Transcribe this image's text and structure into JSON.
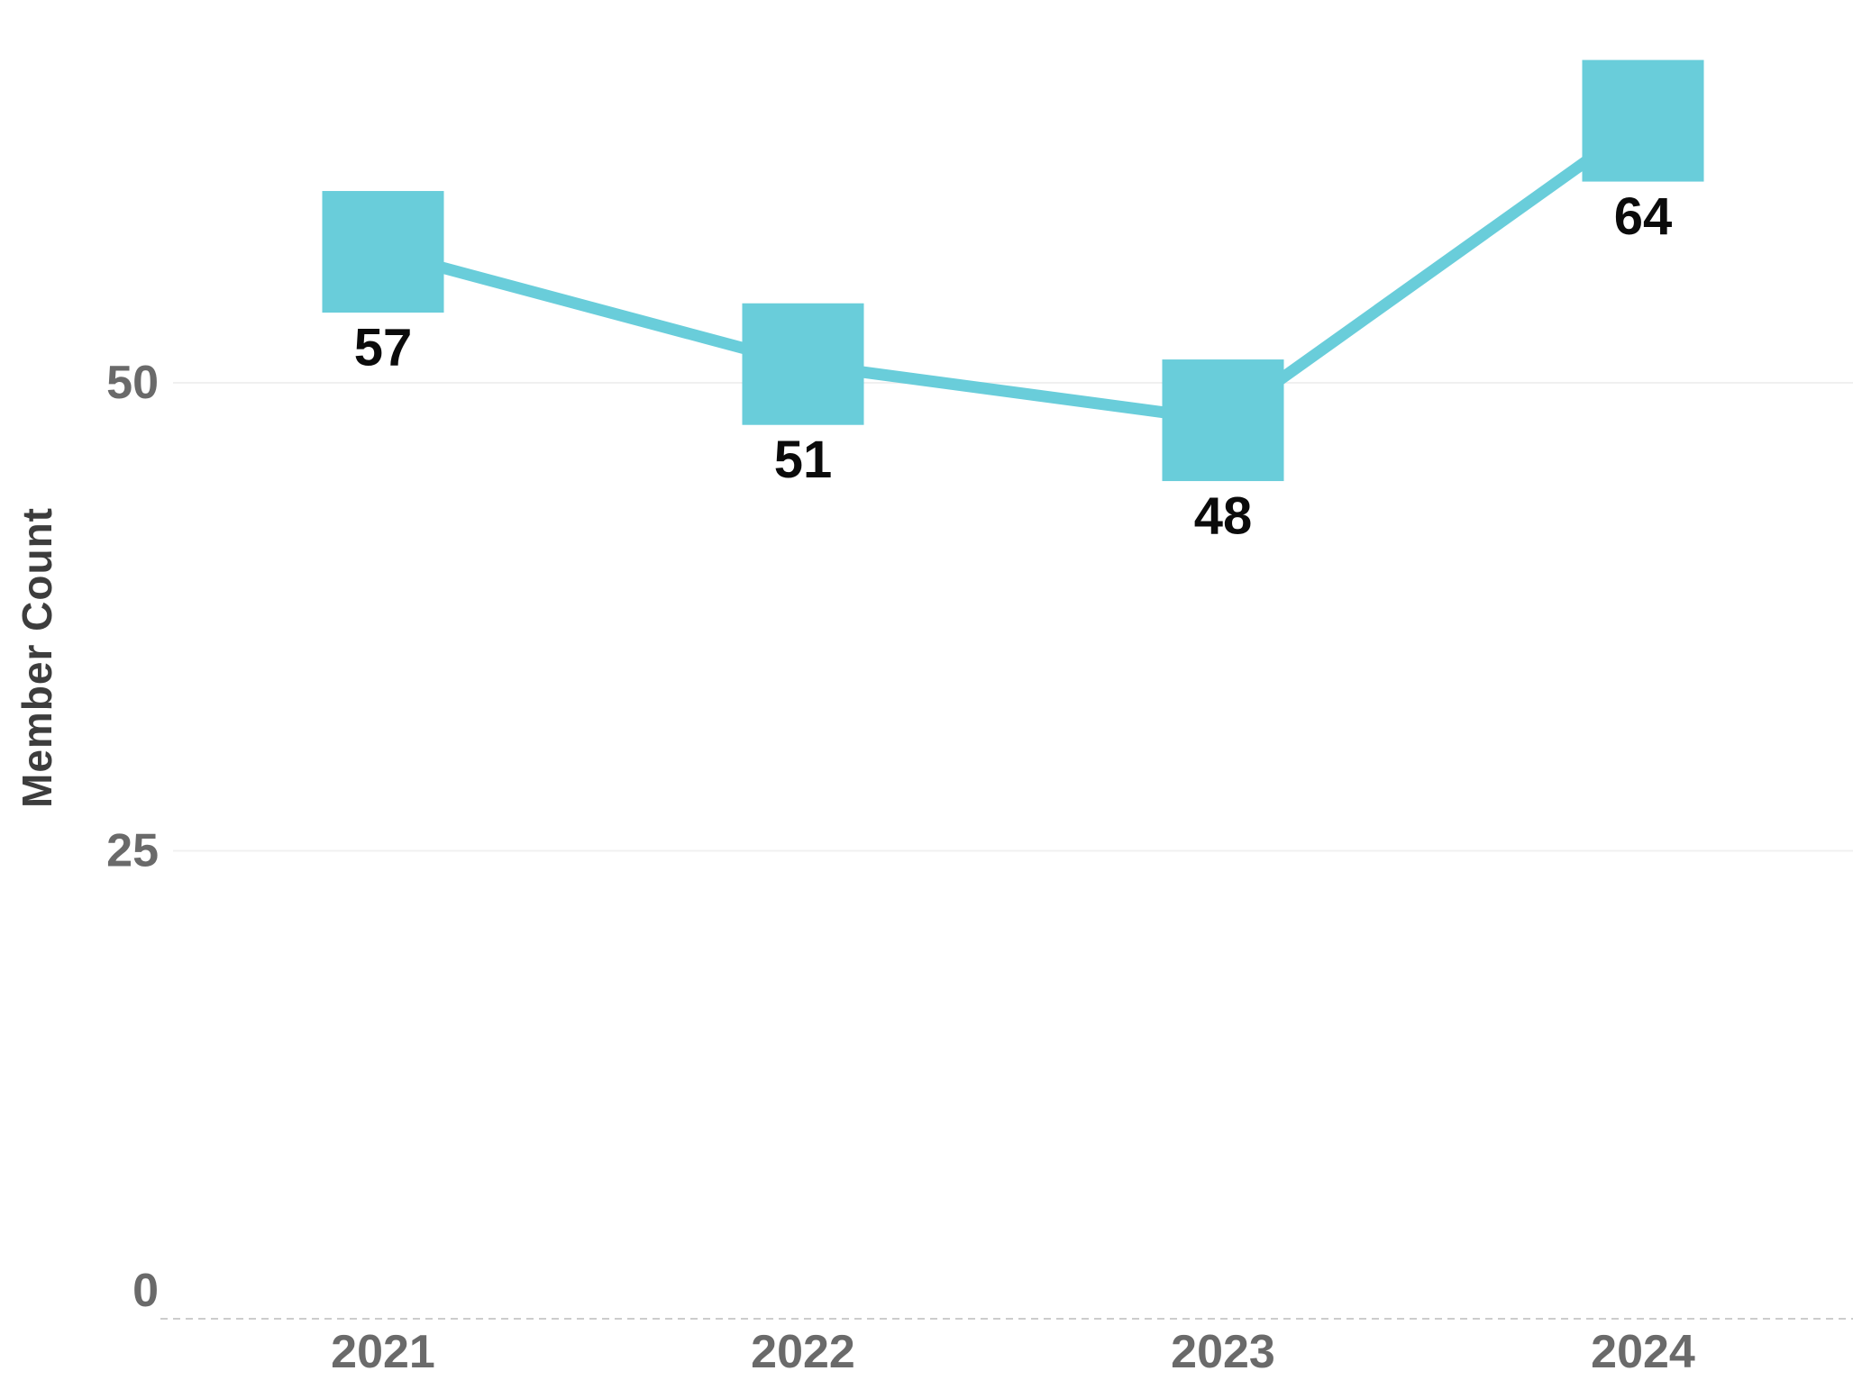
{
  "chart_data": {
    "type": "line",
    "title": "",
    "categories": [
      "2021",
      "2022",
      "2023",
      "2024"
    ],
    "series": [
      {
        "name": "Member Count",
        "values": [
          57,
          51,
          48,
          64
        ]
      }
    ],
    "point_labels": [
      "57",
      "51",
      "48",
      "64"
    ],
    "xlabel": "",
    "ylabel": "Member Count",
    "yticks": [
      0,
      25,
      50
    ],
    "ylim": [
      0,
      70
    ],
    "legend": "none",
    "grid": "horizontal solid light gridlines at 25 and 50, dashed light baseline at 0, no vertical gridlines",
    "marker_shape": "square",
    "colors": {
      "series": "#69CDDA",
      "gridline": "#F0F0F0",
      "axis_baseline": "#CCCCCC",
      "tick_label": "#6A6A6A",
      "axis_title": "#3D3D3D",
      "value_label": "#0B0B0B",
      "background": "#FFFFFF"
    }
  }
}
